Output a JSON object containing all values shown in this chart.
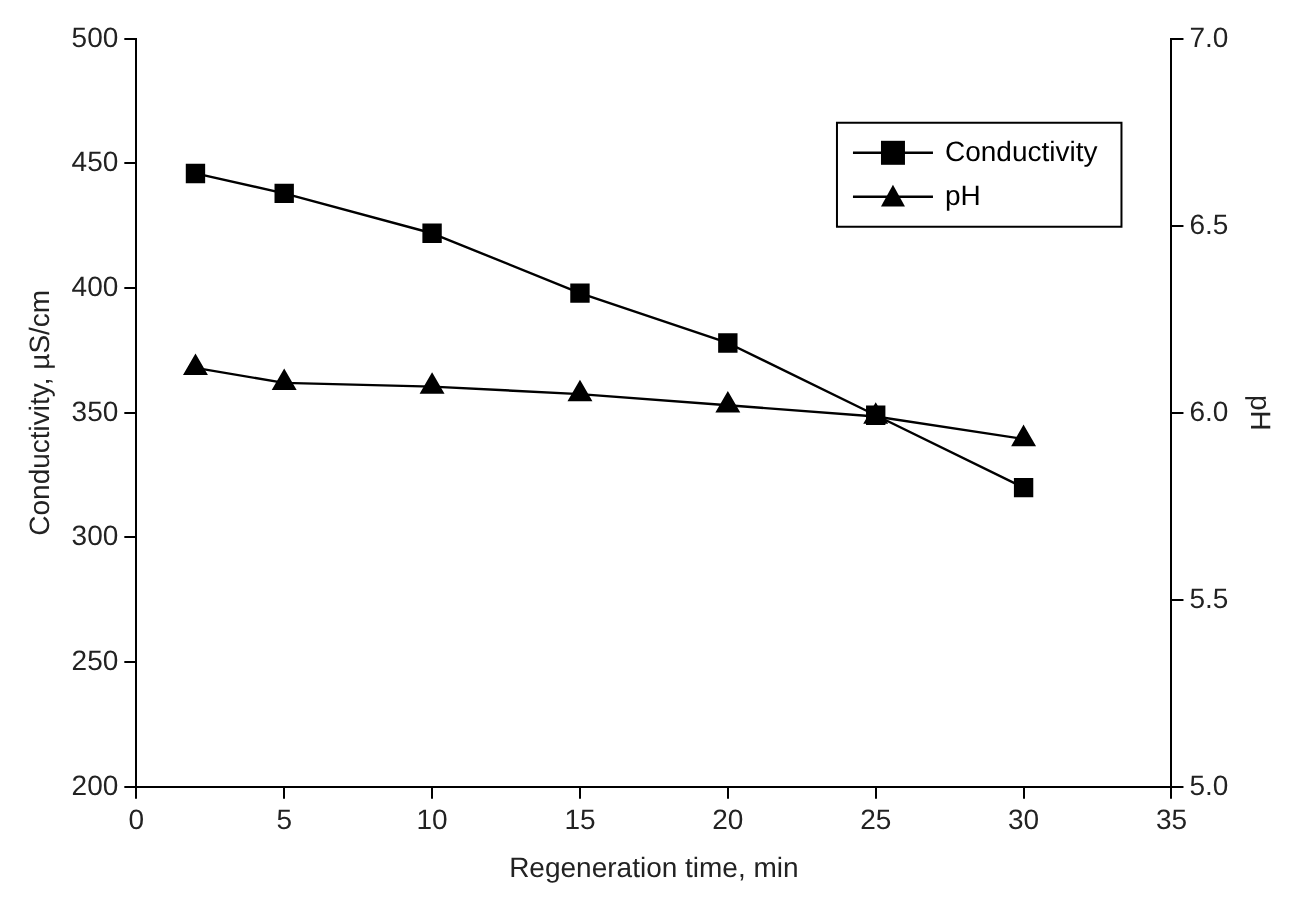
{
  "chart_data": {
    "type": "line",
    "xlabel": "Regeneration time, min",
    "ylabel": "Conductivity, µS/cm",
    "y2label": "pH",
    "x": [
      2,
      5,
      10,
      15,
      20,
      25,
      30
    ],
    "series": [
      {
        "name": "Conductivity",
        "color": "#000000",
        "marker": "square",
        "values": [
          446,
          438,
          422,
          398,
          378,
          349,
          320
        ]
      },
      {
        "name": "pH",
        "color": "#000000",
        "marker": "triangle",
        "axis": "y2",
        "values": [
          6.12,
          6.08,
          6.07,
          6.05,
          6.02,
          5.99,
          5.93
        ]
      }
    ],
    "xlim": [
      0,
      35
    ],
    "xticks": [
      0,
      5,
      10,
      15,
      20,
      25,
      30,
      35
    ],
    "ylim": [
      200,
      500
    ],
    "yticks": [
      200,
      250,
      300,
      350,
      400,
      450,
      500
    ],
    "y2lim": [
      5.0,
      7.0
    ],
    "y2ticks": [
      {
        "value": 5,
        "label": "5.0"
      },
      {
        "value": 5.5,
        "label": "5.5"
      },
      {
        "value": 6,
        "label": "6.0"
      },
      {
        "value": 6.5,
        "label": "6.5"
      },
      {
        "value": 7,
        "label": "7.0"
      }
    ],
    "legend": "top right",
    "line_style": "solid",
    "grid": false
  }
}
